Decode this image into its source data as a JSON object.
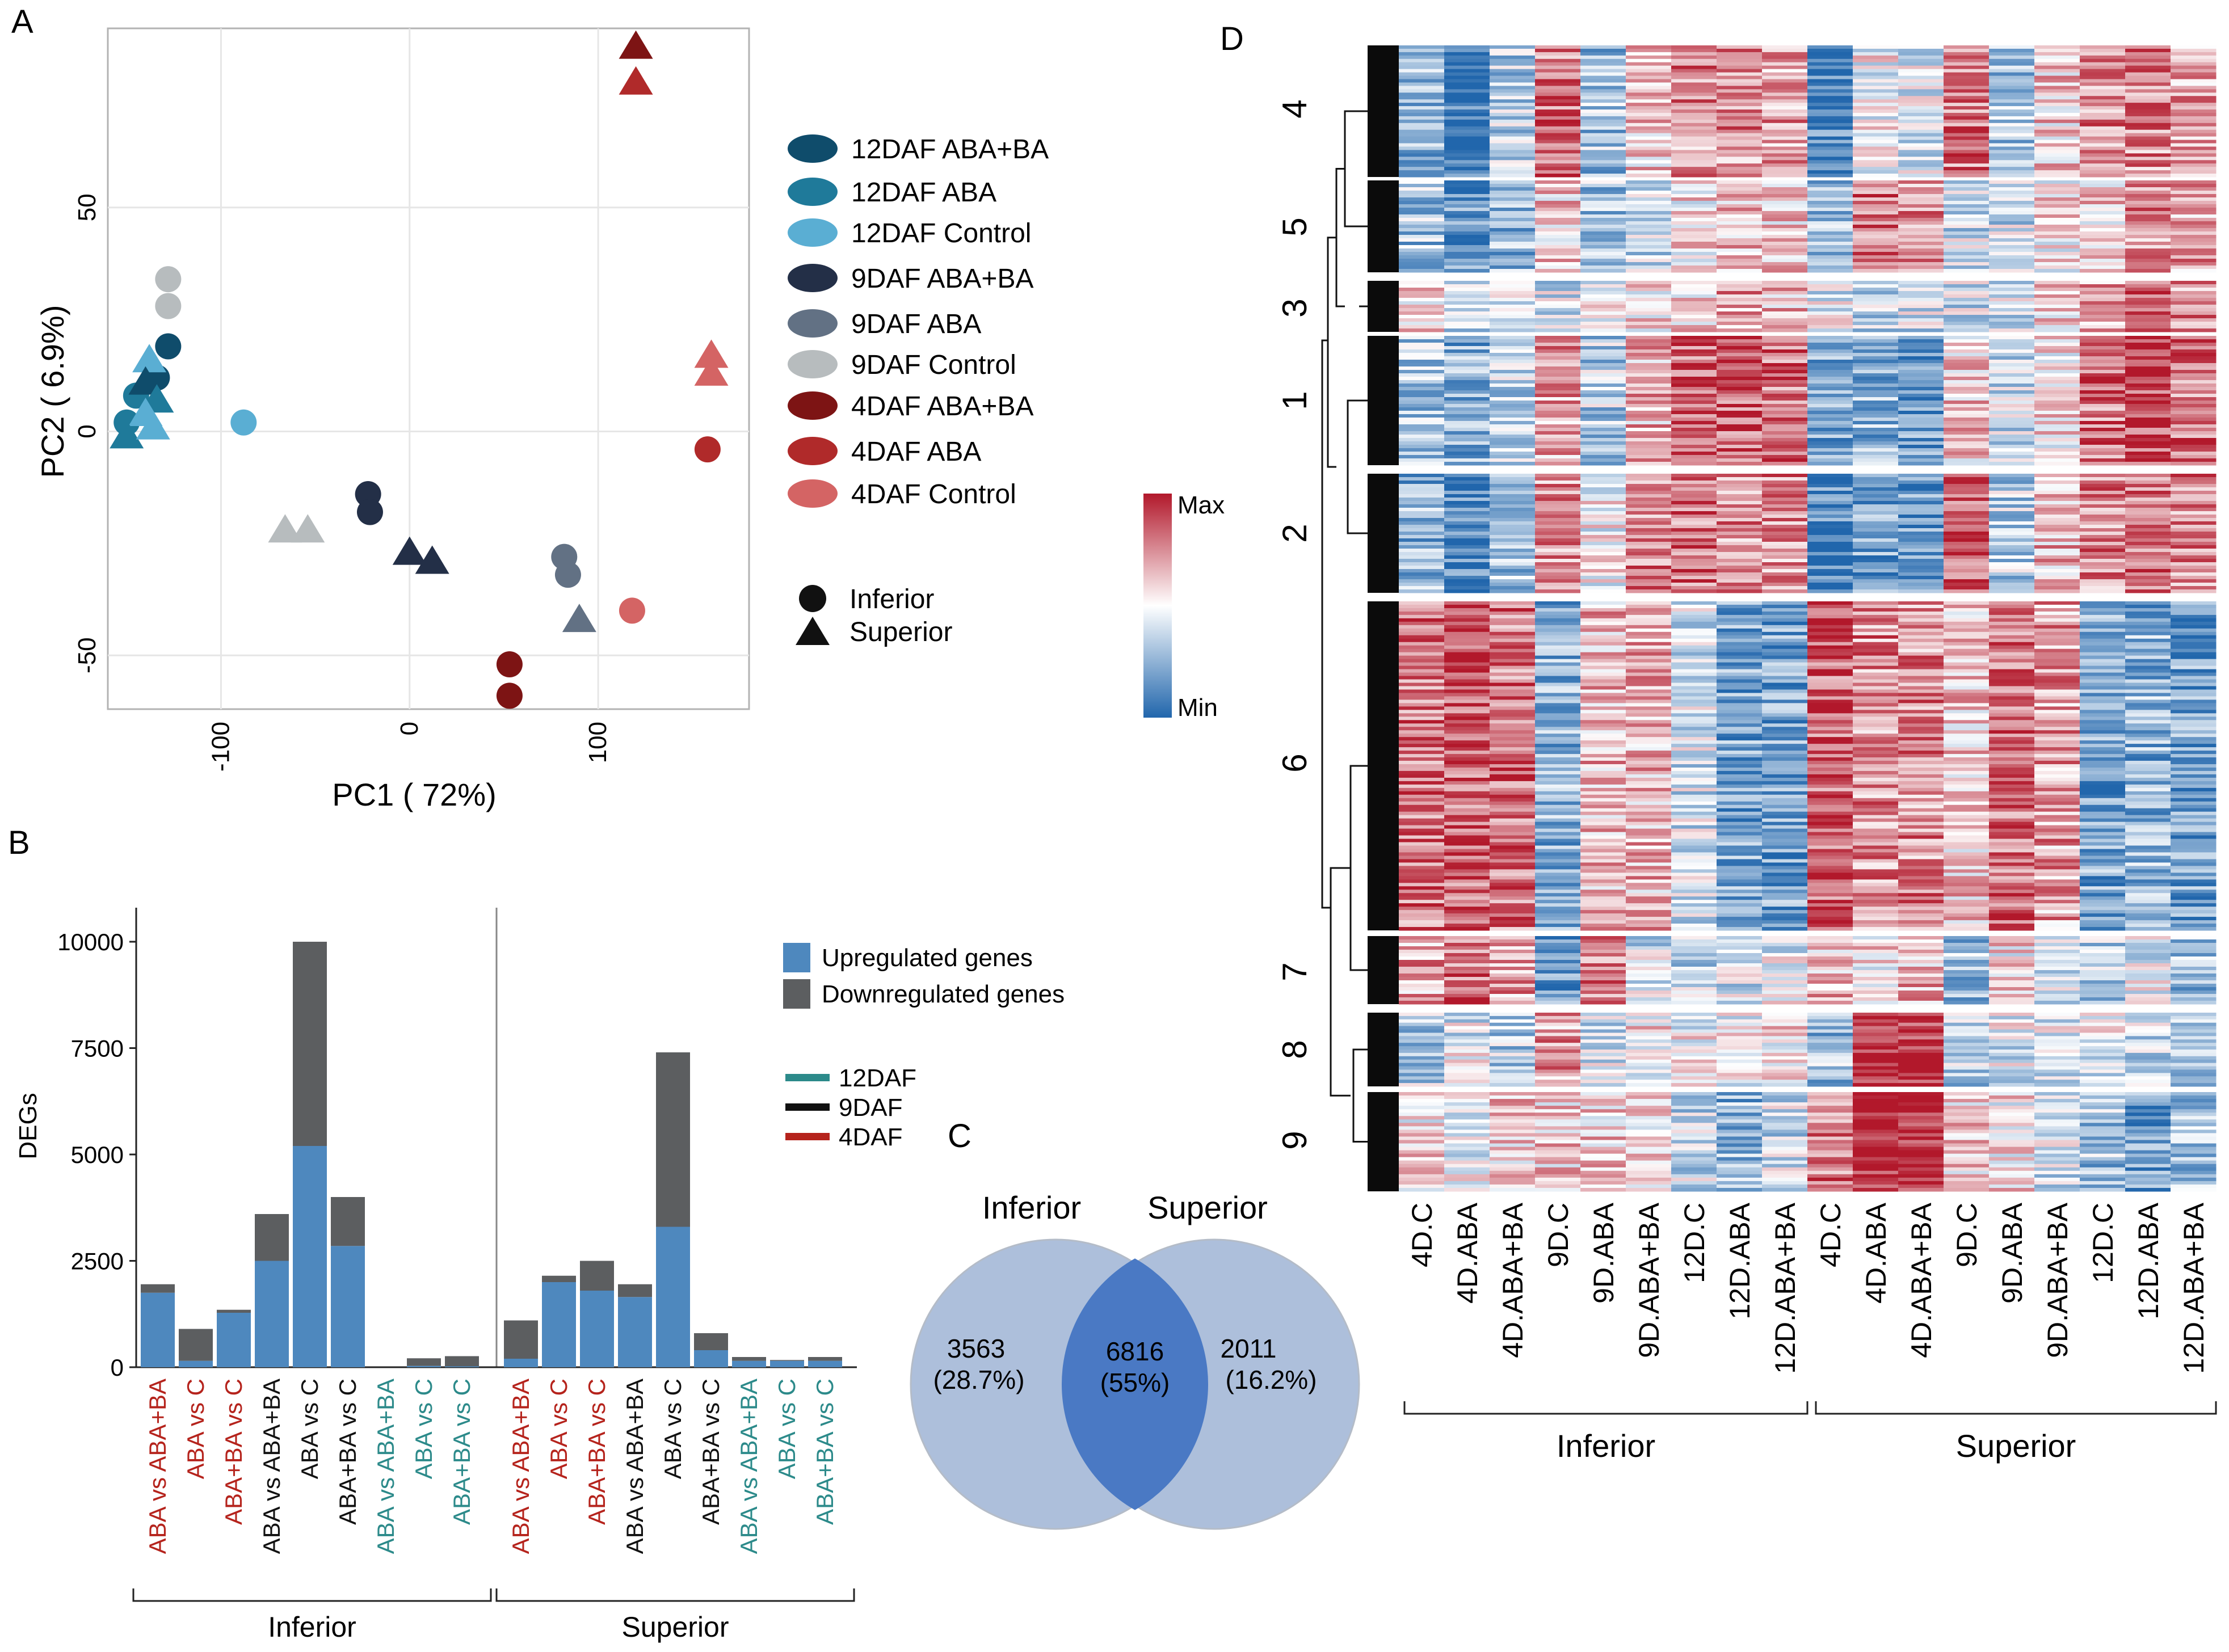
{
  "panels": {
    "a": "A",
    "b": "B",
    "c": "C",
    "d": "D"
  },
  "chart_data": [
    {
      "type": "scatter",
      "panel": "A",
      "xlabel": "PC1 ( 72%)",
      "ylabel": "PC2 ( 6.9%)",
      "xlim": [
        -160,
        180
      ],
      "ylim": [
        -62,
        90
      ],
      "xticks": [
        -100,
        0,
        100
      ],
      "yticks": [
        -50,
        0,
        50
      ],
      "legend_groups": [
        {
          "name": "12DAF ABA+BA",
          "color": "#0f4c6b"
        },
        {
          "name": "12DAF ABA",
          "color": "#1f7a9a"
        },
        {
          "name": "12DAF Control",
          "color": "#5aaed3"
        },
        {
          "name": "9DAF ABA+BA",
          "color": "#232f47"
        },
        {
          "name": "9DAF ABA",
          "color": "#627184"
        },
        {
          "name": "9DAF Control",
          "color": "#b7bcbe"
        },
        {
          "name": "4DAF ABA+BA",
          "color": "#7d1414"
        },
        {
          "name": "4DAF ABA",
          "color": "#b02a2a"
        },
        {
          "name": "4DAF Control",
          "color": "#d46464"
        }
      ],
      "shape_legend": [
        {
          "name": "Inferior",
          "shape": "circle"
        },
        {
          "name": "Superior",
          "shape": "triangle"
        }
      ],
      "points": [
        {
          "group": 5,
          "shape": "circle",
          "x": -128,
          "y": 34
        },
        {
          "group": 5,
          "shape": "circle",
          "x": -128,
          "y": 28
        },
        {
          "group": 0,
          "shape": "circle",
          "x": -128,
          "y": 19
        },
        {
          "group": 0,
          "shape": "circle",
          "x": -134,
          "y": 12
        },
        {
          "group": 1,
          "shape": "circle",
          "x": -145,
          "y": 8
        },
        {
          "group": 1,
          "shape": "circle",
          "x": -150,
          "y": 2
        },
        {
          "group": 2,
          "shape": "circle",
          "x": -88,
          "y": 2
        },
        {
          "group": 2,
          "shape": "triangle",
          "x": -138,
          "y": 16
        },
        {
          "group": 0,
          "shape": "triangle",
          "x": -140,
          "y": 11
        },
        {
          "group": 1,
          "shape": "triangle",
          "x": -134,
          "y": 7
        },
        {
          "group": 2,
          "shape": "triangle",
          "x": -140,
          "y": 4
        },
        {
          "group": 1,
          "shape": "triangle",
          "x": -150,
          "y": -1
        },
        {
          "group": 2,
          "shape": "triangle",
          "x": -136,
          "y": 1
        },
        {
          "group": 5,
          "shape": "triangle",
          "x": -66,
          "y": -22
        },
        {
          "group": 5,
          "shape": "triangle",
          "x": -54,
          "y": -22
        },
        {
          "group": 3,
          "shape": "circle",
          "x": -22,
          "y": -14
        },
        {
          "group": 3,
          "shape": "circle",
          "x": -21,
          "y": -18
        },
        {
          "group": 3,
          "shape": "triangle",
          "x": 0,
          "y": -27
        },
        {
          "group": 3,
          "shape": "triangle",
          "x": 12,
          "y": -29
        },
        {
          "group": 4,
          "shape": "circle",
          "x": 82,
          "y": -28
        },
        {
          "group": 4,
          "shape": "circle",
          "x": 84,
          "y": -32
        },
        {
          "group": 4,
          "shape": "triangle",
          "x": 90,
          "y": -42
        },
        {
          "group": 8,
          "shape": "circle",
          "x": 118,
          "y": -40
        },
        {
          "group": 6,
          "shape": "circle",
          "x": 53,
          "y": -52
        },
        {
          "group": 6,
          "shape": "circle",
          "x": 53,
          "y": -59
        },
        {
          "group": 6,
          "shape": "triangle",
          "x": 120,
          "y": 86
        },
        {
          "group": 7,
          "shape": "triangle",
          "x": 120,
          "y": 78
        },
        {
          "group": 8,
          "shape": "triangle",
          "x": 160,
          "y": 17
        },
        {
          "group": 8,
          "shape": "triangle",
          "x": 160,
          "y": 13
        },
        {
          "group": 7,
          "shape": "circle",
          "x": 158,
          "y": -4
        }
      ]
    },
    {
      "type": "bar",
      "panel": "B",
      "stacked": true,
      "ylabel": "DEGs",
      "ylim": [
        0,
        10800
      ],
      "yticks": [
        0,
        2500,
        5000,
        7500,
        10000
      ],
      "ytick_labels": [
        "0",
        "2500",
        "5000",
        "7500",
        "10000"
      ],
      "categories": [
        "ABA vs ABA+BA",
        "ABA vs C",
        "ABA+BA vs C",
        "ABA vs ABA+BA",
        "ABA vs C",
        "ABA+BA vs C",
        "ABA vs ABA+BA",
        "ABA vs C",
        "ABA+BA vs C",
        "ABA vs ABA+BA",
        "ABA vs C",
        "ABA+BA vs C",
        "ABA vs ABA+BA",
        "ABA vs C",
        "ABA+BA vs C",
        "ABA vs ABA+BA",
        "ABA vs C",
        "ABA+BA vs C"
      ],
      "category_stage": [
        "4DAF",
        "4DAF",
        "4DAF",
        "9DAF",
        "9DAF",
        "9DAF",
        "12DAF",
        "12DAF",
        "12DAF",
        "4DAF",
        "4DAF",
        "4DAF",
        "9DAF",
        "9DAF",
        "9DAF",
        "12DAF",
        "12DAF",
        "12DAF"
      ],
      "groups": [
        "Inferior",
        "Superior"
      ],
      "series": [
        {
          "name": "Upregulated genes",
          "color": "#4e88be",
          "values": [
            1750,
            150,
            1280,
            2500,
            5200,
            2850,
            0,
            30,
            20,
            200,
            2000,
            1800,
            1650,
            3300,
            400,
            150,
            150,
            150
          ]
        },
        {
          "name": "Downregulated genes",
          "color": "#5c5e60",
          "values": [
            200,
            750,
            70,
            1100,
            4800,
            1150,
            0,
            180,
            240,
            900,
            150,
            700,
            300,
            4100,
            400,
            90,
            20,
            90
          ]
        }
      ],
      "stage_legend": [
        {
          "name": "12DAF",
          "color": "#2c8a8a"
        },
        {
          "name": "9DAF",
          "color": "#111111"
        },
        {
          "name": "4DAF",
          "color": "#b5231c"
        }
      ]
    },
    {
      "type": "venn",
      "panel": "C",
      "sets": [
        "Inferior",
        "Superior"
      ],
      "regions": [
        {
          "label": "3563",
          "pct": "(28.7%)"
        },
        {
          "label": "6816",
          "pct": "(55%)"
        },
        {
          "label": "2011",
          "pct": "(16.2%)"
        }
      ]
    },
    {
      "type": "heatmap",
      "panel": "D",
      "columns": [
        "4D.C",
        "4D.ABA",
        "4D.ABA+BA",
        "9D.C",
        "9D.ABA",
        "9D.ABA+BA",
        "12D.C",
        "12D.ABA",
        "12D.ABA+BA",
        "4D.C",
        "4D.ABA",
        "4D.ABA+BA",
        "9D.C",
        "9D.ABA",
        "9D.ABA+BA",
        "12D.C",
        "12D.ABA",
        "12D.ABA+BA"
      ],
      "groups": [
        "Inferior",
        "Superior"
      ],
      "scale": {
        "max": "Max",
        "min": "Min"
      },
      "clusters": [
        {
          "name": "4",
          "values": [
            -0.5,
            -0.9,
            -0.3,
            0.6,
            -0.4,
            0.2,
            0.5,
            0.5,
            0.4,
            -0.8,
            0.0,
            -0.1,
            0.6,
            -0.4,
            0.2,
            0.5,
            0.5,
            0.4
          ]
        },
        {
          "name": "5",
          "values": [
            -0.4,
            -0.7,
            -0.5,
            0.2,
            -0.4,
            -0.2,
            0.1,
            0.3,
            0.2,
            -0.5,
            0.6,
            0.5,
            -0.2,
            -0.2,
            0.1,
            0.2,
            0.5,
            0.4
          ]
        },
        {
          "name": "3",
          "values": [
            0.1,
            -0.2,
            -0.1,
            -0.2,
            0.0,
            0.1,
            0.2,
            0.4,
            0.3,
            -0.1,
            -0.3,
            -0.2,
            -0.2,
            -0.2,
            0.2,
            0.4,
            0.7,
            0.5
          ]
        },
        {
          "name": "1",
          "values": [
            -0.4,
            -0.5,
            -0.3,
            0.4,
            -0.3,
            0.3,
            0.6,
            0.7,
            0.6,
            -0.6,
            -0.5,
            -0.7,
            0.2,
            -0.2,
            0.1,
            0.6,
            0.8,
            0.6
          ]
        },
        {
          "name": "2",
          "values": [
            -0.5,
            -0.8,
            -0.4,
            0.5,
            0.0,
            0.5,
            0.6,
            0.5,
            0.5,
            -0.8,
            -0.6,
            -0.7,
            0.7,
            -0.3,
            0.3,
            0.5,
            0.6,
            0.5
          ]
        },
        {
          "name": "6",
          "values": [
            0.6,
            0.7,
            0.6,
            -0.5,
            0.3,
            0.3,
            -0.2,
            -0.6,
            -0.6,
            0.7,
            0.5,
            0.5,
            0.2,
            0.6,
            0.4,
            -0.6,
            -0.5,
            -0.6
          ]
        },
        {
          "name": "7",
          "values": [
            0.4,
            0.6,
            0.4,
            -0.7,
            0.5,
            -0.2,
            -0.3,
            -0.2,
            -0.1,
            0.3,
            0.1,
            0.3,
            -0.4,
            0.1,
            -0.2,
            -0.3,
            -0.1,
            -0.4
          ]
        },
        {
          "name": "8",
          "values": [
            -0.3,
            -0.1,
            -0.3,
            0.4,
            -0.2,
            0.1,
            0.0,
            0.0,
            0.1,
            -0.4,
            1.0,
            0.9,
            -0.3,
            -0.1,
            -0.1,
            -0.1,
            -0.2,
            -0.3
          ]
        },
        {
          "name": "9",
          "values": [
            0.1,
            -0.1,
            0.2,
            0.2,
            0.2,
            0.1,
            -0.2,
            -0.5,
            -0.2,
            0.6,
            1.0,
            1.0,
            0.2,
            0.1,
            -0.2,
            -0.4,
            -0.6,
            -0.4
          ]
        }
      ]
    }
  ]
}
